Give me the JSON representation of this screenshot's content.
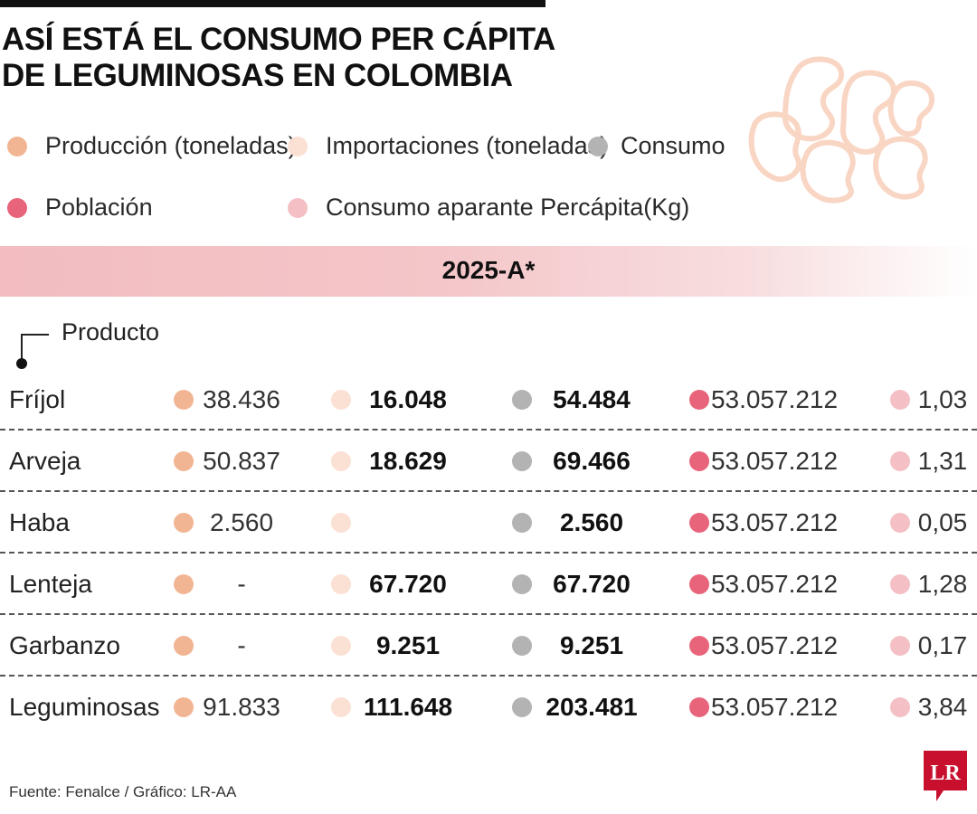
{
  "title": [
    "ASÍ ESTÁ EL CONSUMO PER CÁPITA",
    "DE LEGUMINOSAS EN COLOMBIA"
  ],
  "legend": [
    {
      "key": "produccion",
      "label": "Producción (toneladas)",
      "color": "#f2b594"
    },
    {
      "key": "importaciones",
      "label": "Importaciones (toneladas)",
      "color": "#fbe0d4"
    },
    {
      "key": "consumo",
      "label": "Consumo",
      "color": "#b3b3b3"
    },
    {
      "key": "poblacion",
      "label": "Población",
      "color": "#e8647a"
    },
    {
      "key": "percapita",
      "label": "Consumo aparante Percápita(Kg)",
      "color": "#f4bfc5"
    }
  ],
  "period": "2025-A*",
  "product_header": "Producto",
  "chart_data": {
    "type": "table",
    "title": "ASÍ ESTÁ EL CONSUMO PER CÁPITA DE LEGUMINOSAS EN COLOMBIA",
    "period": "2025-A*",
    "columns": [
      "Producción (toneladas)",
      "Importaciones (toneladas)",
      "Consumo",
      "Población",
      "Consumo aparante Percápita(Kg)"
    ],
    "rows": [
      {
        "producto": "Fríjol",
        "produccion": "38.436",
        "importaciones": "16.048",
        "consumo": "54.484",
        "poblacion": "53.057.212",
        "percapita": "1,03"
      },
      {
        "producto": "Arveja",
        "produccion": "50.837",
        "importaciones": "18.629",
        "consumo": "69.466",
        "poblacion": "53.057.212",
        "percapita": "1,31"
      },
      {
        "producto": "Haba",
        "produccion": "2.560",
        "importaciones": "",
        "consumo": "2.560",
        "poblacion": "53.057.212",
        "percapita": "0,05"
      },
      {
        "producto": "Lenteja",
        "produccion": "-",
        "importaciones": "67.720",
        "consumo": "67.720",
        "poblacion": "53.057.212",
        "percapita": "1,28"
      },
      {
        "producto": "Garbanzo",
        "produccion": "-",
        "importaciones": "9.251",
        "consumo": "9.251",
        "poblacion": "53.057.212",
        "percapita": "0,17"
      },
      {
        "producto": "Leguminosas",
        "produccion": "91.833",
        "importaciones": "111.648",
        "consumo": "203.481",
        "poblacion": "53.057.212",
        "percapita": "3,84"
      }
    ]
  },
  "source": "Fuente: Fenalce / Gráfico: LR-AA",
  "logo_text": "LR",
  "logo_color": "#c8102e"
}
